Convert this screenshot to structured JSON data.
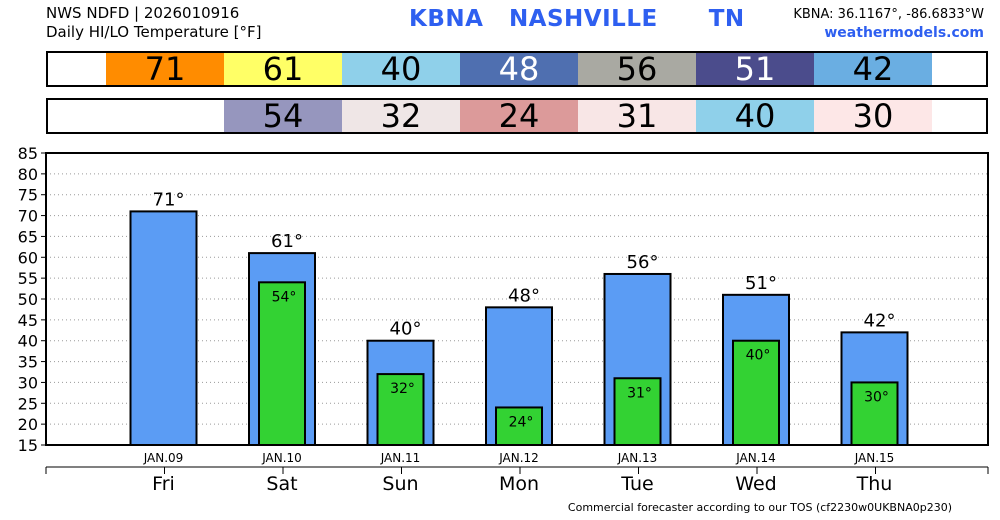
{
  "header": {
    "line1": "NWS NDFD | 2026010916",
    "line2": "Daily HI/LO Temperature [°F]",
    "station": "KBNA",
    "city": "NASHVILLE",
    "state": "TN",
    "coords": "KBNA: 36.1167°, -86.6833°W",
    "site": "weathermodels.com"
  },
  "hi_strip": [
    {
      "value": "71",
      "color": "#ff8c00"
    },
    {
      "value": "61",
      "color": "#ffff66"
    },
    {
      "value": "40",
      "color": "#8fd0ea"
    },
    {
      "value": "48",
      "color": "#4f6fb0",
      "light": true
    },
    {
      "value": "56",
      "color": "#a9a9a2"
    },
    {
      "value": "51",
      "color": "#4b4c8c",
      "light": true
    },
    {
      "value": "42",
      "color": "#6aaee2"
    }
  ],
  "lo_strip": [
    {
      "value": "",
      "color": "#ffffff"
    },
    {
      "value": "54",
      "color": "#9696be"
    },
    {
      "value": "32",
      "color": "#efe6e6"
    },
    {
      "value": "24",
      "color": "#dc9a9a"
    },
    {
      "value": "31",
      "color": "#f8e6e6"
    },
    {
      "value": "40",
      "color": "#8fd0ea"
    },
    {
      "value": "30",
      "color": "#fde7e7"
    }
  ],
  "chart_data": {
    "type": "bar",
    "categories": [
      "JAN.09",
      "JAN.10",
      "JAN.11",
      "JAN.12",
      "JAN.13",
      "JAN.14",
      "JAN.15"
    ],
    "days": [
      "Fri",
      "Sat",
      "Sun",
      "Mon",
      "Tue",
      "Wed",
      "Thu"
    ],
    "series": [
      {
        "values": [
          71,
          61,
          40,
          48,
          56,
          51,
          42
        ],
        "labels": [
          "71°",
          "61°",
          "40°",
          "48°",
          "56°",
          "51°",
          "42°"
        ],
        "color": "#5b9cf4"
      },
      {
        "values": [
          null,
          54,
          32,
          24,
          31,
          40,
          30
        ],
        "labels": [
          "",
          "54°",
          "32°",
          "24°",
          "31°",
          "40°",
          "30°"
        ],
        "color": "#33d233"
      }
    ],
    "ylim": [
      15,
      85
    ],
    "yticks": [
      "15",
      "20",
      "25",
      "30",
      "35",
      "40",
      "45",
      "50",
      "55",
      "60",
      "65",
      "70",
      "75",
      "80",
      "85"
    ],
    "grid": true
  },
  "footer": "Commercial forecaster according to our TOS (cf2230w0UKBNA0p230)"
}
